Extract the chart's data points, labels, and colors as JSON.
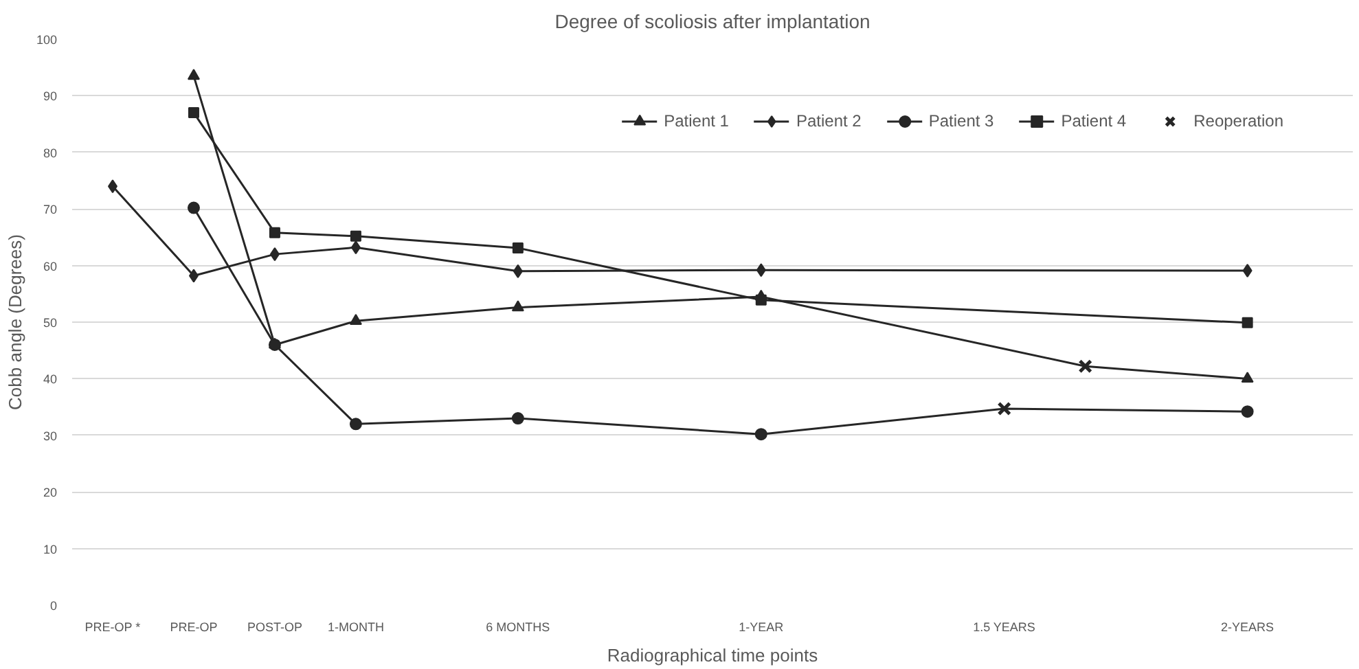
{
  "chart_data": {
    "type": "line",
    "title": "Degree of scoliosis after implantation",
    "xlabel": "Radiographical time points",
    "ylabel": "Cobb angle (Degrees)",
    "categories": [
      "PRE-OP *",
      "PRE-OP",
      "POST-OP",
      "1-MONTH",
      null,
      "6 MONTHS",
      null,
      null,
      "1-YEAR",
      null,
      null,
      "1.5 YEARS",
      null,
      null,
      "2-YEARS"
    ],
    "ylim": [
      0,
      100
    ],
    "yticks": [
      0,
      10,
      20,
      30,
      40,
      50,
      60,
      70,
      80,
      90,
      100
    ],
    "grid": "y",
    "legend": "top right",
    "line_style": "solid",
    "series": [
      {
        "name": "Patient 1",
        "color": "#262626",
        "marker": "triangle",
        "values": [
          null,
          93.5,
          46,
          50.2,
          null,
          52.6,
          null,
          null,
          54.5,
          null,
          null,
          null,
          42.2,
          null,
          40
        ]
      },
      {
        "name": "Patient 2",
        "color": "#262626",
        "marker": "diamond",
        "values": [
          74,
          58.2,
          62,
          63.2,
          null,
          59,
          null,
          null,
          59.2,
          null,
          null,
          null,
          null,
          null,
          59.1
        ]
      },
      {
        "name": "Patient 3",
        "color": "#262626",
        "marker": "circle",
        "values": [
          null,
          70.2,
          46,
          32,
          null,
          33,
          null,
          null,
          30.2,
          null,
          null,
          34.7,
          null,
          null,
          34.2
        ]
      },
      {
        "name": "Patient 4",
        "color": "#262626",
        "marker": "square",
        "values": [
          null,
          87,
          65.8,
          65.2,
          null,
          63.1,
          null,
          null,
          53.9,
          null,
          null,
          null,
          null,
          null,
          49.9
        ]
      },
      {
        "name": "Reoperation",
        "type": "scatter",
        "color": "#262626",
        "marker": "cross",
        "values": [
          null,
          null,
          null,
          null,
          null,
          null,
          null,
          null,
          null,
          null,
          null,
          34.7,
          42.2,
          null,
          null
        ]
      }
    ]
  }
}
